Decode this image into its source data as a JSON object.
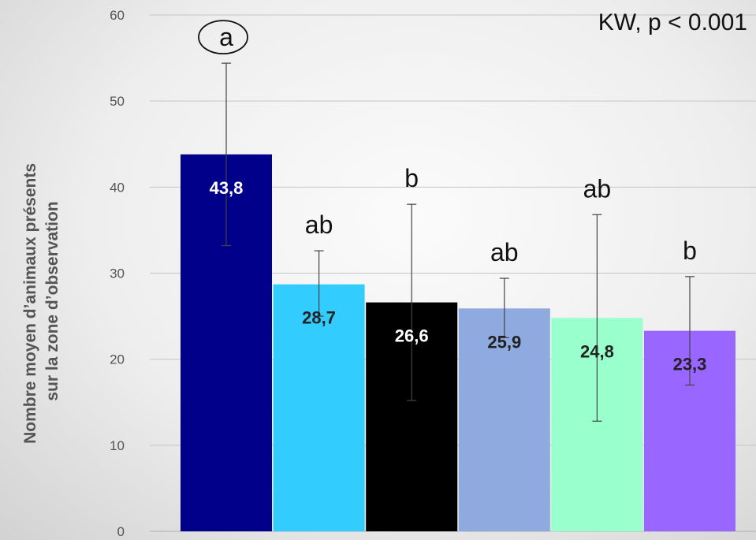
{
  "chart_data": {
    "type": "bar",
    "ylabel_lines": [
      "Nombre moyen d’animaux présents",
      "sur la zone d’observation"
    ],
    "ylim": [
      0,
      60
    ],
    "yticks": [
      0,
      10,
      20,
      30,
      40,
      50,
      60
    ],
    "grid": true,
    "annotation": "KW, p < 0.001",
    "bars": [
      {
        "value": 43.8,
        "label": "43,8",
        "err_low": 33.2,
        "err_high": 54.4,
        "sig": "a",
        "sig_circled": true,
        "color": "#00008b",
        "label_color": "#ffffff"
      },
      {
        "value": 28.7,
        "label": "28,7",
        "err_low": 25.0,
        "err_high": 32.6,
        "sig": "ab",
        "sig_circled": false,
        "color": "#33ccff",
        "label_color": "#222222"
      },
      {
        "value": 26.6,
        "label": "26,6",
        "err_low": 15.2,
        "err_high": 38.0,
        "sig": "b",
        "sig_circled": false,
        "color": "#000000",
        "label_color": "#ffffff"
      },
      {
        "value": 25.9,
        "label": "25,9",
        "err_low": 22.5,
        "err_high": 29.4,
        "sig": "ab",
        "sig_circled": false,
        "color": "#8eaadf",
        "label_color": "#222222"
      },
      {
        "value": 24.8,
        "label": "24,8",
        "err_low": 12.8,
        "err_high": 36.8,
        "sig": "ab",
        "sig_circled": false,
        "color": "#99ffcc",
        "label_color": "#222222"
      },
      {
        "value": 23.3,
        "label": "23,3",
        "err_low": 17.0,
        "err_high": 29.6,
        "sig": "b",
        "sig_circled": false,
        "color": "#9966ff",
        "label_color": "#222222"
      }
    ]
  }
}
